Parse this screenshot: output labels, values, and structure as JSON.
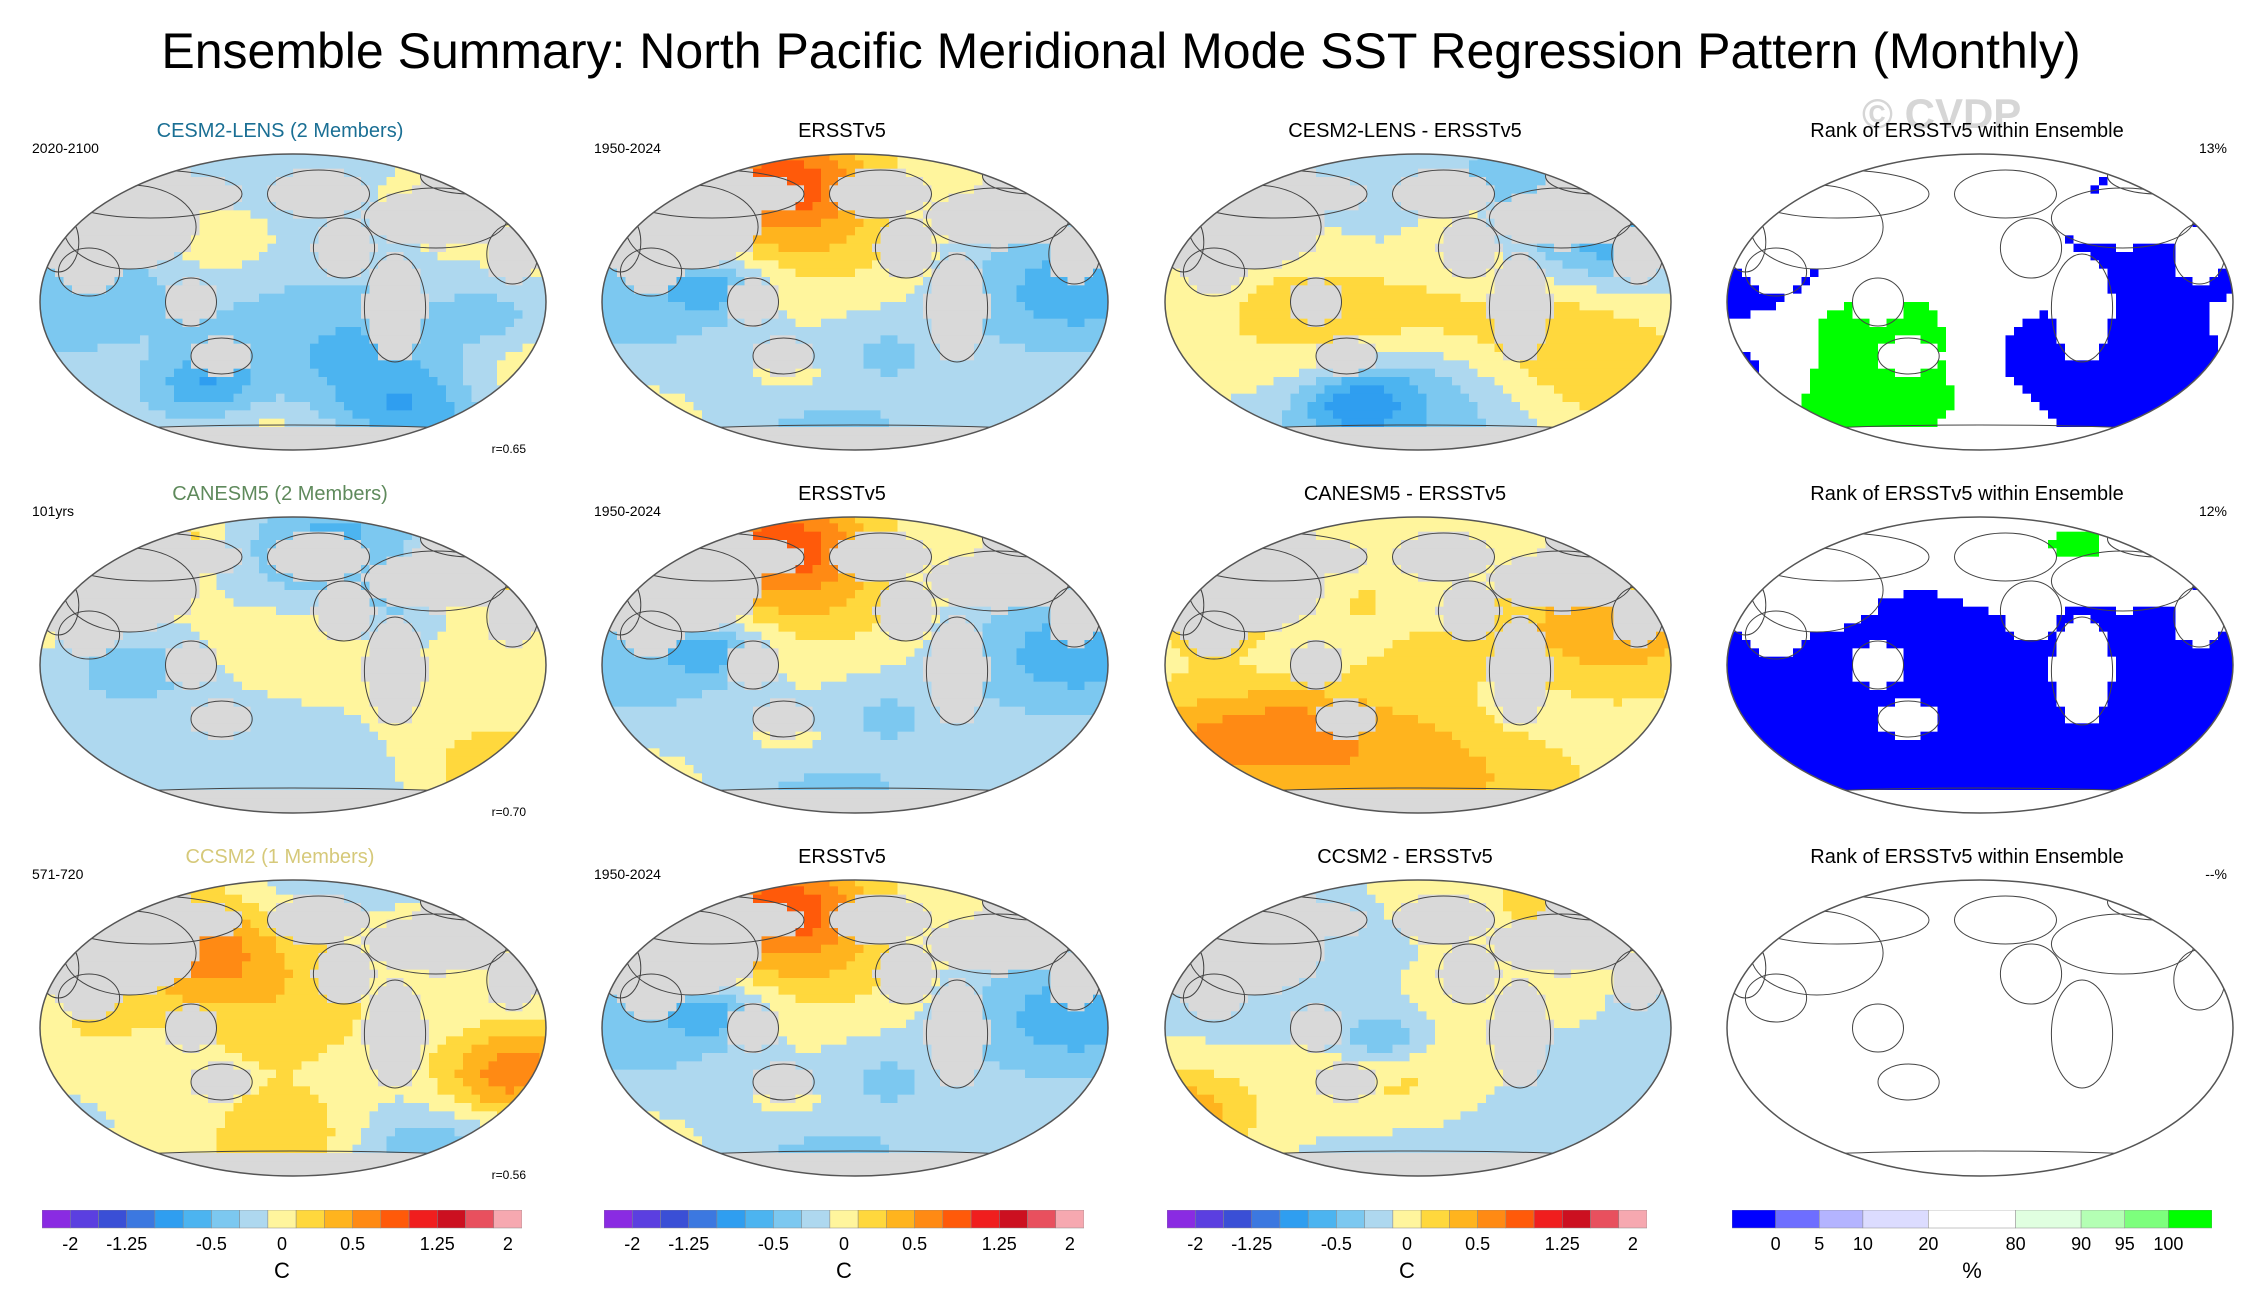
{
  "figure": {
    "title": "Ensemble Summary: North Pacific Meridional Mode SST Regression Pattern (Monthly)",
    "watermark": "© CVDP"
  },
  "chart_data": [
    {
      "type": "heatmap",
      "title": "CESM2-LENS (2 Members)",
      "title_color": "#1a6f94",
      "corner_left": "2020-2100",
      "corner_right": "",
      "r_label": "r=0.65",
      "cmap": "div",
      "seed": 3,
      "patterns": [
        "model1"
      ]
    },
    {
      "type": "heatmap",
      "title": "ERSSTv5",
      "title_color": "#000000",
      "corner_left": "1950-2024",
      "corner_right": "",
      "r_label": "",
      "cmap": "div",
      "seed": 7,
      "patterns": [
        "obs"
      ]
    },
    {
      "type": "heatmap",
      "title": "CESM2-LENS - ERSSTv5",
      "title_color": "#000000",
      "corner_left": "",
      "corner_right": "",
      "r_label": "",
      "cmap": "div",
      "seed": 11,
      "patterns": [
        "diff1"
      ]
    },
    {
      "type": "heatmap",
      "title": "Rank of ERSSTv5 within Ensemble",
      "title_color": "#000000",
      "corner_left": "",
      "corner_right": "13%",
      "r_label": "",
      "cmap": "rank",
      "seed": 13,
      "patterns": [
        "rank1"
      ]
    },
    {
      "type": "heatmap",
      "title": "CANESM5 (2 Members)",
      "title_color": "#5f8a5c",
      "corner_left": "101yrs",
      "corner_right": "",
      "r_label": "r=0.70",
      "cmap": "div",
      "seed": 17,
      "patterns": [
        "model2"
      ]
    },
    {
      "type": "heatmap",
      "title": "ERSSTv5",
      "title_color": "#000000",
      "corner_left": "1950-2024",
      "corner_right": "",
      "r_label": "",
      "cmap": "div",
      "seed": 7,
      "patterns": [
        "obs"
      ]
    },
    {
      "type": "heatmap",
      "title": "CANESM5 - ERSSTv5",
      "title_color": "#000000",
      "corner_left": "",
      "corner_right": "",
      "r_label": "",
      "cmap": "div",
      "seed": 19,
      "patterns": [
        "diff2"
      ]
    },
    {
      "type": "heatmap",
      "title": "Rank of ERSSTv5 within Ensemble",
      "title_color": "#000000",
      "corner_left": "",
      "corner_right": "12%",
      "r_label": "",
      "cmap": "rank",
      "seed": 23,
      "patterns": [
        "rank2"
      ]
    },
    {
      "type": "heatmap",
      "title": "CCSM2 (1 Members)",
      "title_color": "#d6c97a",
      "corner_left": "571-720",
      "corner_right": "",
      "r_label": "r=0.56",
      "cmap": "div",
      "seed": 29,
      "patterns": [
        "model3"
      ]
    },
    {
      "type": "heatmap",
      "title": "ERSSTv5",
      "title_color": "#000000",
      "corner_left": "1950-2024",
      "corner_right": "",
      "r_label": "",
      "cmap": "div",
      "seed": 7,
      "patterns": [
        "obs"
      ]
    },
    {
      "type": "heatmap",
      "title": "CCSM2 - ERSSTv5",
      "title_color": "#000000",
      "corner_left": "",
      "corner_right": "",
      "r_label": "",
      "cmap": "div",
      "seed": 31,
      "patterns": [
        "diff3"
      ]
    },
    {
      "type": "heatmap",
      "title": "Rank of ERSSTv5 within Ensemble",
      "title_color": "#000000",
      "corner_left": "",
      "corner_right": "--%",
      "r_label": "",
      "cmap": "empty",
      "seed": 37,
      "patterns": [
        "none"
      ]
    }
  ],
  "colorbars": [
    {
      "kind": "div",
      "units": "C",
      "ticks": [
        "-2",
        "-1.25",
        "-0.5",
        "0",
        "0.5",
        "1.25",
        "2"
      ]
    },
    {
      "kind": "div",
      "units": "C",
      "ticks": [
        "-2",
        "-1.25",
        "-0.5",
        "0",
        "0.5",
        "1.25",
        "2"
      ]
    },
    {
      "kind": "div",
      "units": "C",
      "ticks": [
        "-2",
        "-1.25",
        "-0.5",
        "0",
        "0.5",
        "1.25",
        "2"
      ]
    },
    {
      "kind": "rank",
      "units": "%",
      "ticks": [
        "0",
        "5",
        "10",
        "20",
        "80",
        "90",
        "95",
        "100"
      ]
    }
  ],
  "palettes": {
    "div": [
      "#8a2be2",
      "#5b3fe0",
      "#3a4fd6",
      "#3c78e0",
      "#2f9ef0",
      "#4cb4f0",
      "#7cc8f0",
      "#aed8ef",
      "#fff59d",
      "#ffd83d",
      "#ffb41e",
      "#ff8a14",
      "#ff5a0a",
      "#f01e1e",
      "#cc1020",
      "#e8505e",
      "#f6a8b0"
    ],
    "rank": [
      "#0000ff",
      "#6e6eff",
      "#b4b4ff",
      "#dcdcff",
      "#ffffff",
      "#e0ffe0",
      "#b4ffb4",
      "#7dff7d",
      "#00ff00"
    ],
    "land": "#d9d9d9"
  }
}
